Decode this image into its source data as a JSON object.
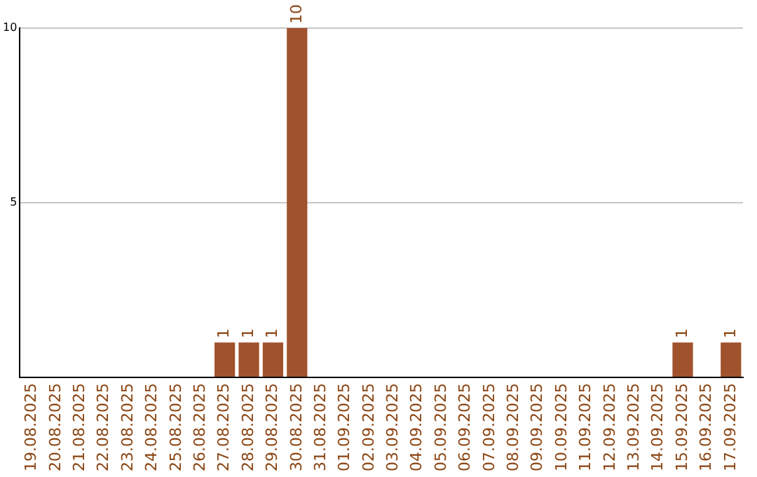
{
  "chart_data": {
    "type": "bar",
    "categories": [
      "19.08.2025",
      "20.08.2025",
      "21.08.2025",
      "22.08.2025",
      "23.08.2025",
      "24.08.2025",
      "25.08.2025",
      "26.08.2025",
      "27.08.2025",
      "28.08.2025",
      "29.08.2025",
      "30.08.2025",
      "31.08.2025",
      "01.09.2025",
      "02.09.2025",
      "03.09.2025",
      "04.09.2025",
      "05.09.2025",
      "06.09.2025",
      "07.09.2025",
      "08.09.2025",
      "09.09.2025",
      "10.09.2025",
      "11.09.2025",
      "12.09.2025",
      "13.09.2025",
      "14.09.2025",
      "15.09.2025",
      "16.09.2025",
      "17.09.2025"
    ],
    "values": [
      0,
      0,
      0,
      0,
      0,
      0,
      0,
      0,
      1,
      1,
      1,
      10,
      0,
      0,
      0,
      0,
      0,
      0,
      0,
      0,
      0,
      0,
      0,
      0,
      0,
      0,
      0,
      1,
      0,
      1
    ],
    "value_labels": [
      null,
      null,
      null,
      null,
      null,
      null,
      null,
      null,
      "1",
      "1",
      "1",
      "10",
      null,
      null,
      null,
      null,
      null,
      null,
      null,
      null,
      null,
      null,
      null,
      null,
      null,
      null,
      null,
      "1",
      null,
      "1"
    ],
    "color": "#a0522d",
    "ylim": [
      0,
      10
    ],
    "yticks": [
      {
        "value": 0,
        "label": null
      },
      5,
      10
    ],
    "grid": "y",
    "legend": false
  }
}
